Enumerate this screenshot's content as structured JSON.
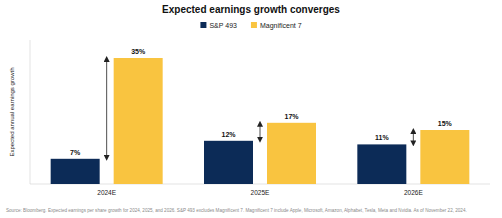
{
  "chart_data": {
    "type": "bar",
    "title": "Expected earnings growth converges",
    "y_label": "Expected annual earnings growth",
    "categories": [
      "2024E",
      "2025E",
      "2026E"
    ],
    "series": [
      {
        "name": "S&P 493",
        "color": "#0c2b57",
        "values": [
          7,
          12,
          11
        ],
        "value_labels": [
          "7%",
          "12%",
          "11%"
        ]
      },
      {
        "name": "Magnificent 7",
        "color": "#f9c440",
        "values": [
          35,
          17,
          15
        ],
        "value_labels": [
          "35%",
          "17%",
          "15%"
        ]
      }
    ],
    "ylim": [
      0,
      40
    ],
    "tick_labels": "x",
    "data_labels": true,
    "legend": "top",
    "annotations": [
      "Source: Bloomberg. Expected earnings per share growth for 2024, 2025, and 2026. S&P 493 excludes Magnificent 7. Magnificent 7 include Apple, Microsoft, Amazon, Alphabet, Tesla, Meta and Nvidia. As of November 22, 2024."
    ]
  }
}
